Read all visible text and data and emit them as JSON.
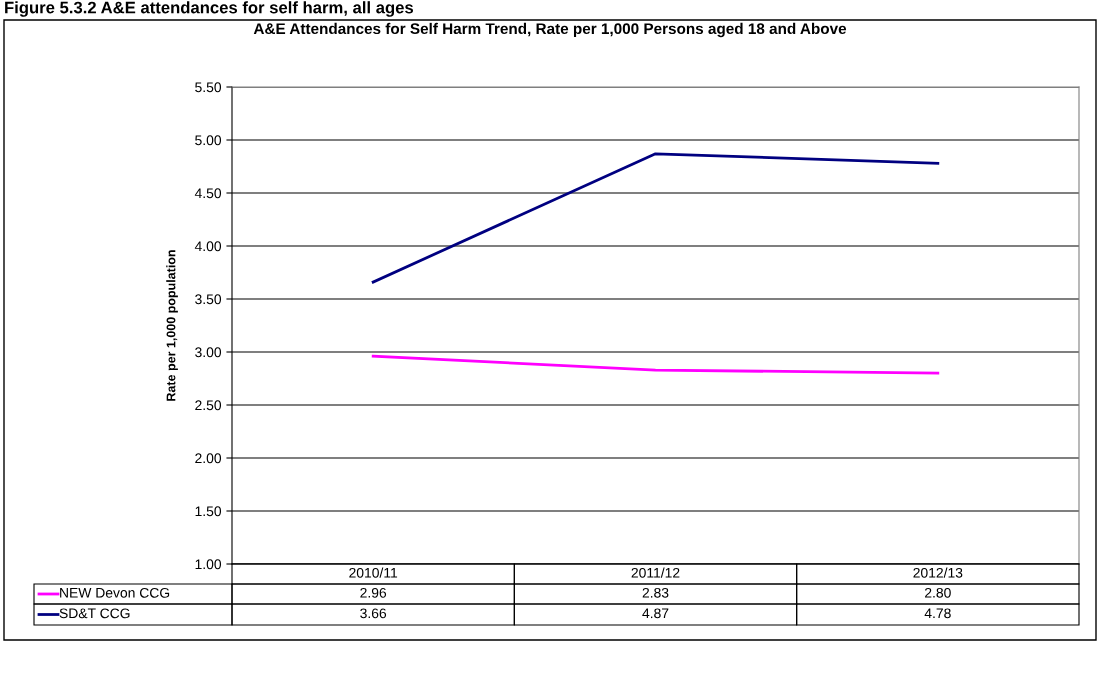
{
  "chart_data": {
    "type": "line",
    "title": "A&E Attendances for Self Harm Trend, Rate per 1,000 Persons aged 18 and Above",
    "annotations": [
      "Figure 5.3.2 A&E attendances for self harm, all ages"
    ],
    "ylabel": "Rate per 1,000 population",
    "categories": [
      "2010/11",
      "2011/12",
      "2012/13"
    ],
    "series": [
      {
        "name": "NEW Devon CCG",
        "color": "#ff00ff",
        "values": [
          2.96,
          2.83,
          2.8
        ],
        "value_labels": [
          "2.96",
          "2.83",
          "2.80"
        ]
      },
      {
        "name": "SD&T CCG",
        "color": "#000080",
        "values": [
          3.66,
          4.87,
          4.78
        ],
        "value_labels": [
          "3.66",
          "4.87",
          "4.78"
        ]
      }
    ],
    "ylim": [
      1.0,
      5.5
    ],
    "yticks": [
      {
        "value": 1.0,
        "label": "1.00"
      },
      {
        "value": 1.5,
        "label": "1.50"
      },
      {
        "value": 2.0,
        "label": "2.00"
      },
      {
        "value": 2.5,
        "label": "2.50"
      },
      {
        "value": 3.0,
        "label": "3.00"
      },
      {
        "value": 3.5,
        "label": "3.50"
      },
      {
        "value": 4.0,
        "label": "4.00"
      },
      {
        "value": 4.5,
        "label": "4.50"
      },
      {
        "value": 5.0,
        "label": "5.00"
      },
      {
        "value": 5.5,
        "label": "5.50"
      }
    ],
    "grid": "y",
    "legend": "bottom",
    "marker": "none",
    "line_style": "solid"
  }
}
